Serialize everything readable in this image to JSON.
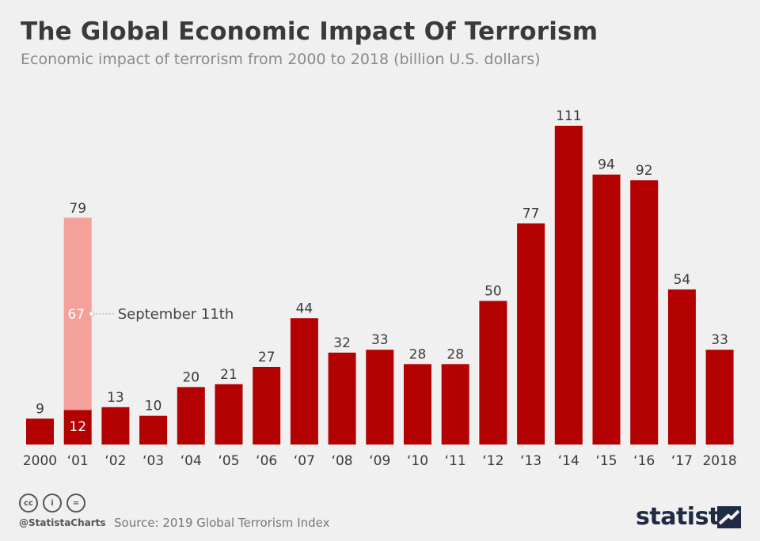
{
  "title": "The Global Economic Impact Of Terrorism",
  "subtitle": "Economic impact of terrorism from 2000 to 2018 (billion U.S. dollars)",
  "chart_data": {
    "type": "bar",
    "categories": [
      "2000",
      "‘01",
      "‘02",
      "‘03",
      "‘04",
      "‘05",
      "‘06",
      "‘07",
      "‘08",
      "‘09",
      "‘10",
      "‘11",
      "‘12",
      "‘13",
      "‘14",
      "‘15",
      "‘16",
      "‘17",
      "2018"
    ],
    "values": [
      9,
      79,
      13,
      10,
      20,
      21,
      27,
      44,
      32,
      33,
      28,
      28,
      50,
      77,
      111,
      94,
      92,
      54,
      33
    ],
    "breakdown_2001": {
      "base": 12,
      "september_11th": 67,
      "total": 79
    },
    "annotation": "September 11th",
    "colors": {
      "bar": "#b30000",
      "highlight": "#f4a09b"
    },
    "ylim": [
      0,
      111
    ]
  },
  "footer": {
    "icons": [
      "cc-icon",
      "attribution-icon",
      "equal-icon"
    ],
    "icon_glyphs": [
      "cc",
      "i",
      "="
    ],
    "handle": "@StatistaCharts",
    "source": "Source: 2019 Global Terrorism Index",
    "brand": "statista"
  }
}
